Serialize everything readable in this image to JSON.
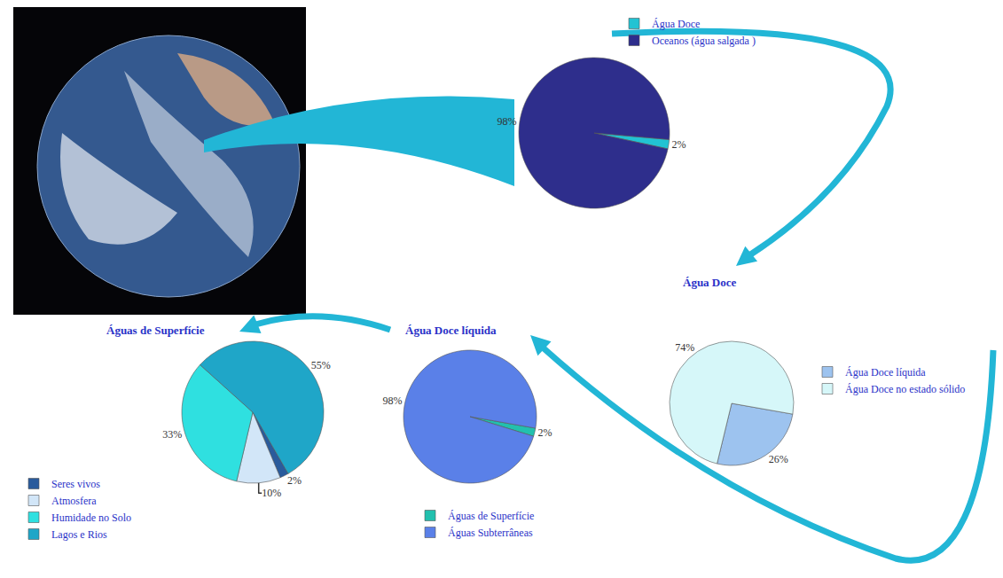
{
  "chart_data": [
    {
      "type": "pie",
      "categories": [
        "Água Doce",
        "Oceanos (água salgada )"
      ],
      "values": [
        2,
        98
      ],
      "value_labels": [
        "2%",
        "98%"
      ],
      "colors": [
        "#22c3d3",
        "#2e2e8c"
      ],
      "data_labels": true,
      "legend": "top right"
    },
    {
      "type": "pie",
      "title": "Água Doce",
      "categories": [
        "Água Doce líquida",
        "Água Doce no estado sólido"
      ],
      "values": [
        26,
        74
      ],
      "value_labels": [
        "26%",
        "74%"
      ],
      "colors": [
        "#9dc3ef",
        "#d6f7f9"
      ],
      "data_labels": true,
      "legend": "right"
    },
    {
      "type": "pie",
      "title": "Água Doce líquida",
      "categories": [
        "Águas de Superfície",
        "Águas Subterrâneas"
      ],
      "values": [
        2,
        98
      ],
      "value_labels": [
        "2%",
        "98%"
      ],
      "colors": [
        "#22c0ae",
        "#5a80e8"
      ],
      "data_labels": true,
      "legend": "bottom"
    },
    {
      "type": "pie",
      "title": "Águas de Superfície",
      "categories": [
        "Seres vivos",
        "Atmosfera",
        "Humidade no Solo",
        "Lagos e Rios"
      ],
      "values": [
        2,
        10,
        33,
        55
      ],
      "value_labels": [
        "2%",
        "10%",
        "33%",
        "55%"
      ],
      "colors": [
        "#2a5b9c",
        "#d2e6f8",
        "#2fe0e0",
        "#1fa6c8"
      ],
      "data_labels": true,
      "legend": "bottom left"
    }
  ]
}
